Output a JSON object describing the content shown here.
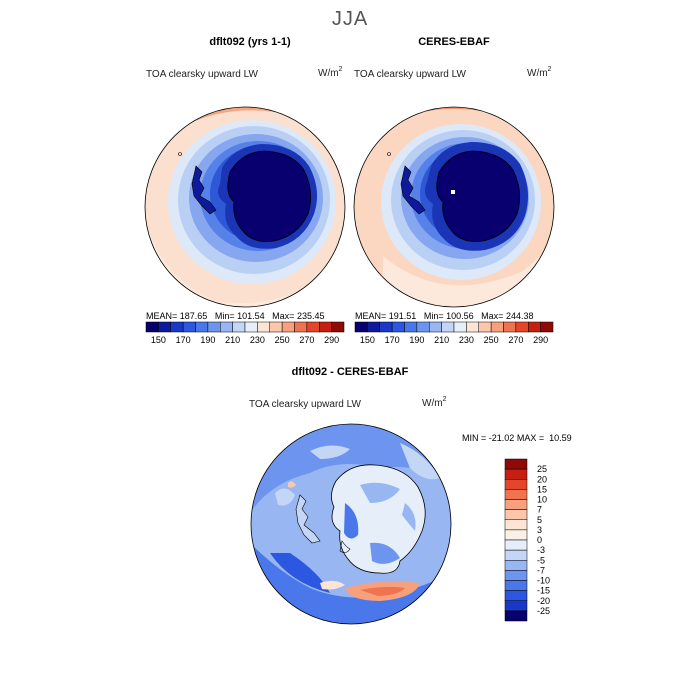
{
  "figure": {
    "season": "JJA"
  },
  "panels": [
    {
      "title": "dflt092 (yrs 1-1)",
      "variable": "TOA clearsky upward LW",
      "units": "W/m",
      "units_sup": "2",
      "mean_label": "MEAN=",
      "mean": "187.65",
      "min_label": "Min=",
      "min": "101.54",
      "max_label": "Max=",
      "max": "235.45"
    },
    {
      "title": "CERES-EBAF",
      "variable": "TOA clearsky upward LW",
      "units": "W/m",
      "units_sup": "2",
      "mean_label": "MEAN=",
      "mean": "191.51",
      "min_label": "Min=",
      "min": "100.56",
      "max_label": "Max=",
      "max": "244.38"
    }
  ],
  "diff_panel": {
    "title": "dflt092 - CERES-EBAF",
    "variable": "TOA clearsky upward LW",
    "units": "W/m",
    "units_sup": "2",
    "min_label": "MIN =",
    "min": "-21.02",
    "max_label": "MAX =",
    "max": "10.59"
  },
  "colorbar_top": {
    "labels": [
      "150",
      "170",
      "190",
      "210",
      "230",
      "250",
      "270",
      "290"
    ],
    "colors": [
      "#08006e",
      "#0d1a9c",
      "#1a38c8",
      "#2c57e0",
      "#4a78ea",
      "#6d95ef",
      "#97b6f2",
      "#c3d6f5",
      "#e6eefa",
      "#fde5d6",
      "#fbc6ac",
      "#f7a07e",
      "#f07350",
      "#e4462a",
      "#c51f12",
      "#8f0a05"
    ]
  },
  "colorbar_diff": {
    "labels": [
      "25",
      "20",
      "15",
      "10",
      "7",
      "5",
      "3",
      "0",
      "-3",
      "-5",
      "-7",
      "-10",
      "-15",
      "-20",
      "-25"
    ],
    "colors": [
      "#8f0a05",
      "#c51f12",
      "#e4462a",
      "#f07350",
      "#f7a07e",
      "#fbc6ac",
      "#fde5d6",
      "#fbf0e6",
      "#e6eefa",
      "#c3d6f5",
      "#97b6f2",
      "#6d95ef",
      "#4a78ea",
      "#2c57e0",
      "#1a38c8",
      "#08006e"
    ]
  }
}
